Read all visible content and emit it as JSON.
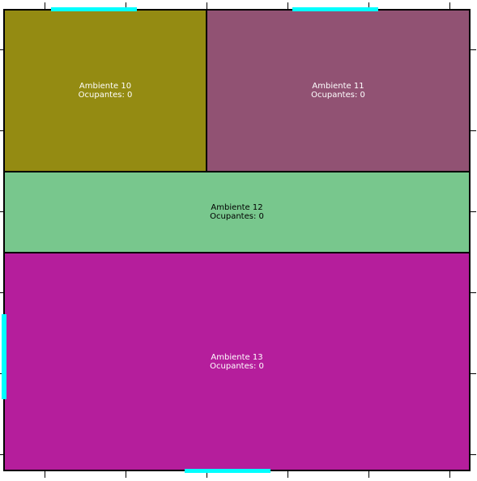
{
  "rooms": [
    {
      "id": "10",
      "name": "Ambiente 10",
      "occupants": "Ocupantes: 0",
      "color": "#948b12",
      "text_color": "#ffffff"
    },
    {
      "id": "11",
      "name": "Ambiente 11",
      "occupants": "Ocupantes: 0",
      "color": "#915273",
      "text_color": "#ffffff"
    },
    {
      "id": "12",
      "name": "Ambiente 12",
      "occupants": "Ocupantes: 0",
      "color": "#78c78d",
      "text_color": "#000000"
    },
    {
      "id": "13",
      "name": "Ambiente 13",
      "occupants": "Ocupantes: 0",
      "color": "#b51e9c",
      "text_color": "#ffffff"
    }
  ],
  "door_color": "#00ffff",
  "wall_color": "#000000"
}
